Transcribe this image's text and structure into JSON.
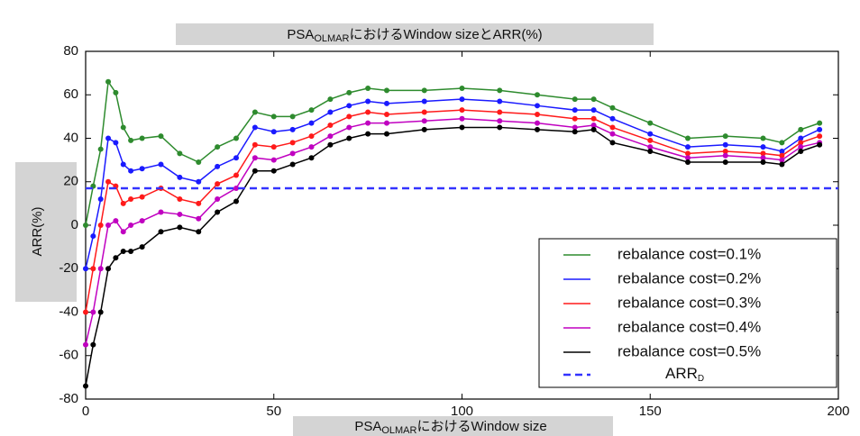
{
  "chart_data": {
    "type": "line",
    "title": {
      "prefix": "PSA",
      "subscript": "OLMAR",
      "suffix": "におけるWindow sizeとARR(%)"
    },
    "x_label": {
      "prefix": "PSA",
      "subscript": "OLMAR",
      "suffix": "におけるWindow size"
    },
    "y_label": "ARR(%)",
    "x": [
      0,
      2,
      4,
      6,
      8,
      10,
      12,
      15,
      20,
      25,
      30,
      35,
      40,
      45,
      50,
      55,
      60,
      65,
      70,
      75,
      80,
      90,
      100,
      110,
      120,
      130,
      135,
      140,
      150,
      160,
      170,
      180,
      185,
      190,
      195
    ],
    "series": [
      {
        "name": "rebalance cost=0.1%",
        "color": "#2e8b2e",
        "values": [
          0,
          18,
          35,
          66,
          61,
          45,
          39,
          40,
          41,
          33,
          29,
          36,
          40,
          52,
          50,
          50,
          53,
          58,
          61,
          63,
          62,
          62,
          63,
          62,
          60,
          58,
          58,
          54,
          47,
          40,
          41,
          40,
          38,
          44,
          47
        ]
      },
      {
        "name": "rebalance cost=0.2%",
        "color": "#1a1aff",
        "values": [
          -20,
          -5,
          12,
          40,
          38,
          28,
          25,
          26,
          28,
          22,
          20,
          27,
          31,
          45,
          43,
          44,
          47,
          52,
          55,
          57,
          56,
          57,
          58,
          57,
          55,
          53,
          53,
          49,
          42,
          36,
          37,
          36,
          34,
          40,
          44
        ]
      },
      {
        "name": "rebalance cost=0.3%",
        "color": "#ff1a1a",
        "values": [
          -40,
          -20,
          0,
          20,
          18,
          10,
          12,
          13,
          17,
          12,
          10,
          19,
          23,
          37,
          36,
          38,
          41,
          46,
          50,
          52,
          51,
          52,
          53,
          52,
          51,
          49,
          49,
          45,
          39,
          33,
          34,
          33,
          32,
          38,
          41
        ]
      },
      {
        "name": "rebalance cost=0.4%",
        "color": "#c000c0",
        "values": [
          -55,
          -40,
          -20,
          0,
          2,
          -3,
          0,
          2,
          6,
          5,
          3,
          12,
          17,
          31,
          30,
          33,
          36,
          41,
          45,
          47,
          47,
          48,
          49,
          48,
          47,
          45,
          46,
          42,
          36,
          31,
          32,
          31,
          30,
          36,
          38
        ]
      },
      {
        "name": "rebalance cost=0.5%",
        "color": "#000000",
        "values": [
          -74,
          -55,
          -40,
          -20,
          -15,
          -12,
          -12,
          -10,
          -3,
          -1,
          -3,
          6,
          11,
          25,
          25,
          28,
          31,
          37,
          40,
          42,
          42,
          44,
          45,
          45,
          44,
          43,
          44,
          38,
          34,
          29,
          29,
          29,
          28,
          34,
          37
        ]
      }
    ],
    "reference_line": {
      "name": "ARR",
      "name_subscript": "D",
      "value": 17,
      "color": "#3333ff",
      "dashed": true
    },
    "xlim": [
      0,
      200
    ],
    "xticks": [
      0,
      50,
      100,
      150,
      200
    ],
    "ylim": [
      -80,
      80
    ],
    "yticks": [
      -80,
      -60,
      -40,
      -20,
      0,
      20,
      40,
      60,
      80
    ],
    "legend": "lower right",
    "markers": true
  }
}
